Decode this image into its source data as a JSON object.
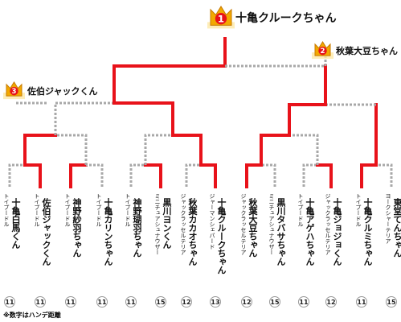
{
  "ranking": [
    {
      "rank": "1",
      "name": "十亀クルークちゃん"
    },
    {
      "rank": "2",
      "name": "秋葉大豆ちゃん"
    },
    {
      "rank": "3",
      "name": "佐伯ジャックくん"
    }
  ],
  "entrants": [
    {
      "breed": "トイプードル",
      "name": "十亀白馬くん",
      "handicap": "11"
    },
    {
      "breed": "トイプードル",
      "name": "佐伯ジャックくん",
      "handicap": "11"
    },
    {
      "breed": "トイプードル",
      "name": "神野紗羽ちゃん",
      "handicap": "11"
    },
    {
      "breed": "トイプードル",
      "name": "十亀カリンちゃん",
      "handicap": "11"
    },
    {
      "breed": "トイプードル",
      "name": "神野瑚羽ちゃん",
      "handicap": "11"
    },
    {
      "breed": "ミニチュアシュナウザー",
      "name": "黒川ヨンくん",
      "handicap": "15"
    },
    {
      "breed": "ジャックラッセルテリア",
      "name": "秋葉カカオちゃん",
      "handicap": "12"
    },
    {
      "breed": "ジャーマンシェパード",
      "name": "十亀クルークちゃん",
      "handicap": "13"
    },
    {
      "breed": "ジャックラッセルテリア",
      "name": "秋葉大豆ちゃん",
      "handicap": "12"
    },
    {
      "breed": "ミニチュアシュナウザー",
      "name": "黒川タバサちゃん",
      "handicap": "15"
    },
    {
      "breed": "トイプードル",
      "name": "十亀アゲハちゃん",
      "handicap": "11"
    },
    {
      "breed": "ジャックラッセルテリア",
      "name": "十亀ジョジョくん",
      "handicap": "12"
    },
    {
      "breed": "トイプードル",
      "name": "十亀クルミちゃん",
      "handicap": "11"
    },
    {
      "breed": "ヨークシャーテリア",
      "name": "東堂てんちゃん",
      "handicap": "15"
    }
  ],
  "note": "※数字はハンデ距離"
}
